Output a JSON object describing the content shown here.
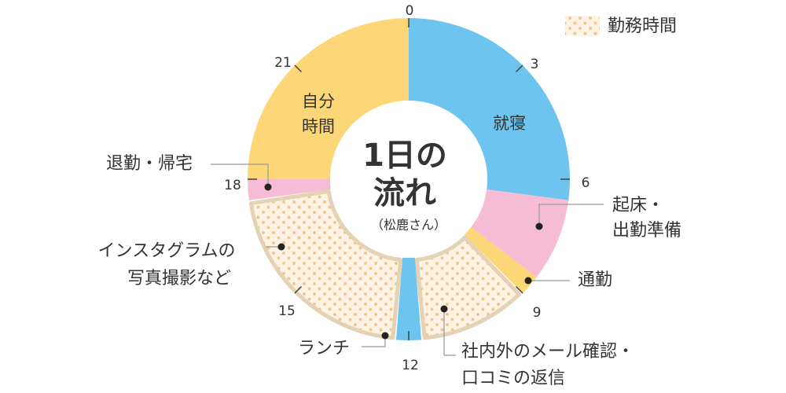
{
  "chart_data": {
    "type": "pie",
    "variant": "24-hour donut clock",
    "hour_ticks": [
      "0",
      "3",
      "6",
      "9",
      "12",
      "15",
      "18",
      "21"
    ],
    "segments": [
      {
        "start": 0.0,
        "end": 6.5,
        "label": [
          "就寝"
        ],
        "color": "#6cc4ef",
        "work": false,
        "label_position": "inside"
      },
      {
        "start": 6.5,
        "end": 8.5,
        "label": [
          "起床・",
          "出勤準備"
        ],
        "color": "#f5bcd3",
        "work": false,
        "label_position": "callout"
      },
      {
        "start": 8.5,
        "end": 9.0,
        "label": [
          "通勤"
        ],
        "color": "#fdd677",
        "work": false,
        "label_position": "callout"
      },
      {
        "start": 9.0,
        "end": 11.7,
        "label": [
          "社内外のメール確認・",
          "口コミの返信"
        ],
        "color": "#fdf2e4",
        "work": true,
        "label_position": "callout"
      },
      {
        "start": 11.7,
        "end": 12.3,
        "label": [
          "ランチ"
        ],
        "color": "#6cc4ef",
        "work": false,
        "label_position": "callout"
      },
      {
        "start": 12.3,
        "end": 17.5,
        "label": [
          "インスタグラムの",
          "写真撮影など"
        ],
        "color": "#fdf2e4",
        "work": true,
        "label_position": "callout"
      },
      {
        "start": 17.5,
        "end": 18.0,
        "label": [
          "退勤・帰宅"
        ],
        "color": "#f5bcd3",
        "work": false,
        "label_position": "callout"
      },
      {
        "start": 18.0,
        "end": 24.0,
        "label": [
          "自分",
          "時間"
        ],
        "color": "#fdd677",
        "work": false,
        "label_position": "inside"
      }
    ],
    "legend": [
      {
        "label": "勤務時間",
        "pattern": "dots"
      }
    ],
    "legend_position": "top-right",
    "center_title": [
      "1日の",
      "流れ"
    ],
    "center_subtitle": "（松鹿さん）"
  },
  "colors": {
    "sleep_blue": "#6cc4ef",
    "pink": "#f5bcd3",
    "yellow": "#fdd677",
    "work_fill": "#fdf2e4",
    "work_border": "#e3d2b4",
    "work_dot": "#f0c690",
    "text": "#333333"
  }
}
